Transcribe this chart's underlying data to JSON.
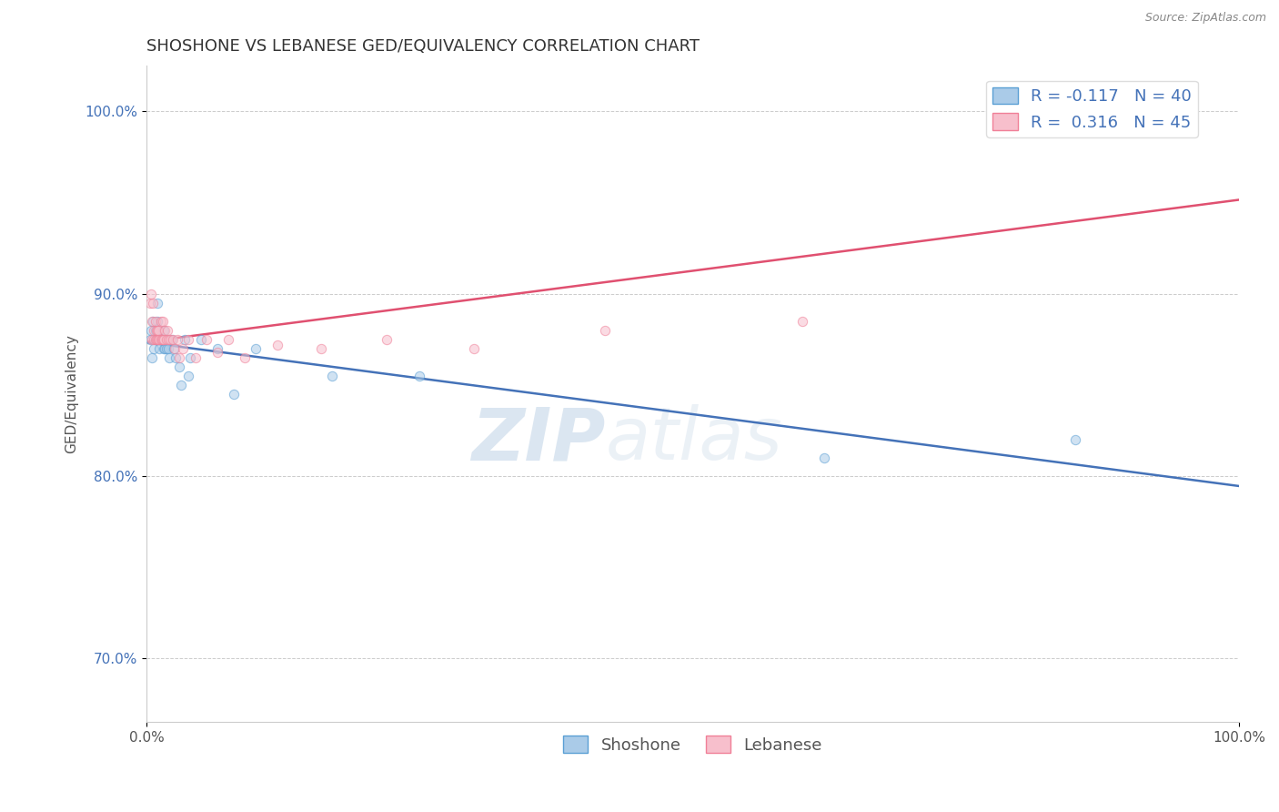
{
  "title": "SHOSHONE VS LEBANESE GED/EQUIVALENCY CORRELATION CHART",
  "ylabel": "GED/Equivalency",
  "source_text": "Source: ZipAtlas.com",
  "xlim": [
    0,
    1
  ],
  "ylim": [
    0.665,
    1.025
  ],
  "yticks": [
    0.7,
    0.8,
    0.9,
    1.0
  ],
  "ytick_labels": [
    "70.0%",
    "80.0%",
    "90.0%",
    "100.0%"
  ],
  "xticks": [
    0.0,
    1.0
  ],
  "xtick_labels": [
    "0.0%",
    "100.0%"
  ],
  "shoshone_color": "#aacbe8",
  "lebanese_color": "#f7bfcc",
  "shoshone_edge_color": "#5a9fd4",
  "lebanese_edge_color": "#f08098",
  "shoshone_line_color": "#4472b8",
  "lebanese_line_color": "#e05070",
  "r_shoshone": -0.117,
  "n_shoshone": 40,
  "r_lebanese": 0.316,
  "n_lebanese": 45,
  "shoshone_x": [
    0.003,
    0.004,
    0.005,
    0.006,
    0.007,
    0.008,
    0.008,
    0.009,
    0.01,
    0.01,
    0.011,
    0.012,
    0.012,
    0.013,
    0.014,
    0.015,
    0.016,
    0.016,
    0.017,
    0.018,
    0.018,
    0.019,
    0.02,
    0.021,
    0.023,
    0.025,
    0.027,
    0.03,
    0.032,
    0.035,
    0.038,
    0.04,
    0.05,
    0.065,
    0.08,
    0.1,
    0.17,
    0.25,
    0.62,
    0.85
  ],
  "shoshone_y": [
    0.875,
    0.88,
    0.865,
    0.885,
    0.87,
    0.875,
    0.88,
    0.875,
    0.885,
    0.895,
    0.875,
    0.875,
    0.87,
    0.875,
    0.875,
    0.875,
    0.87,
    0.88,
    0.87,
    0.875,
    0.87,
    0.875,
    0.87,
    0.865,
    0.875,
    0.87,
    0.865,
    0.86,
    0.85,
    0.875,
    0.855,
    0.865,
    0.875,
    0.87,
    0.845,
    0.87,
    0.855,
    0.855,
    0.81,
    0.82
  ],
  "lebanese_x": [
    0.003,
    0.004,
    0.005,
    0.005,
    0.006,
    0.007,
    0.007,
    0.008,
    0.008,
    0.009,
    0.009,
    0.01,
    0.01,
    0.011,
    0.011,
    0.012,
    0.013,
    0.013,
    0.014,
    0.015,
    0.015,
    0.016,
    0.017,
    0.018,
    0.019,
    0.02,
    0.022,
    0.024,
    0.026,
    0.028,
    0.03,
    0.033,
    0.038,
    0.045,
    0.055,
    0.065,
    0.075,
    0.09,
    0.12,
    0.16,
    0.22,
    0.3,
    0.42,
    0.6,
    0.9
  ],
  "lebanese_y": [
    0.895,
    0.9,
    0.875,
    0.885,
    0.895,
    0.875,
    0.88,
    0.875,
    0.885,
    0.88,
    0.875,
    0.875,
    0.88,
    0.875,
    0.88,
    0.875,
    0.875,
    0.885,
    0.875,
    0.875,
    0.885,
    0.875,
    0.88,
    0.875,
    0.88,
    0.875,
    0.875,
    0.875,
    0.87,
    0.875,
    0.865,
    0.87,
    0.875,
    0.865,
    0.875,
    0.868,
    0.875,
    0.865,
    0.872,
    0.87,
    0.875,
    0.87,
    0.88,
    0.885,
    1.0
  ],
  "background_color": "#ffffff",
  "grid_color": "#cccccc",
  "watermark_text1": "ZIP",
  "watermark_text2": "atlas",
  "title_fontsize": 13,
  "axis_label_fontsize": 11,
  "tick_fontsize": 11,
  "legend_fontsize": 13,
  "marker_size": 55,
  "marker_alpha": 0.55
}
